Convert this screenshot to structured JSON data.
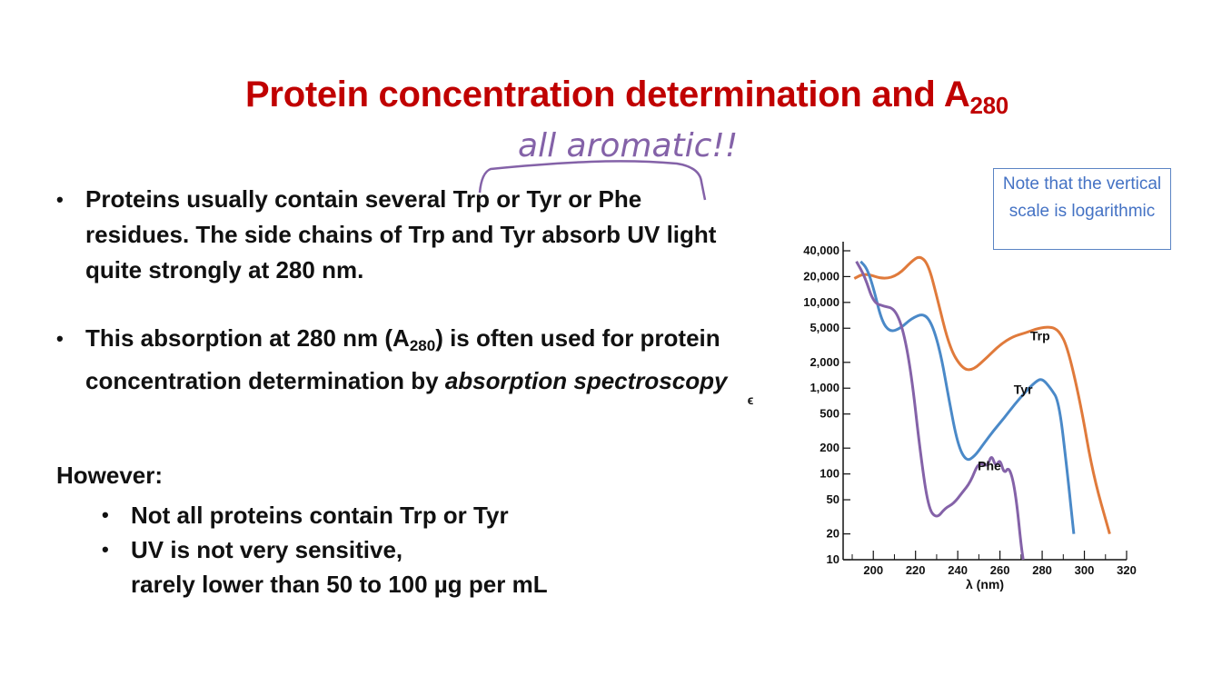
{
  "title": {
    "main": "Protein concentration determination and A",
    "sub": "280"
  },
  "annotation": {
    "handwritten": "all aromatic!!"
  },
  "bullets": [
    {
      "text": "Proteins usually contain several Trp or Tyr or Phe residues.   The side chains of Trp and Tyr absorb UV light quite strongly at 280 nm."
    },
    {
      "part1": "This absorption at 280 nm (A",
      "sub": "280",
      "part2": ") is often used for protein concentration determination by ",
      "italic": "absorption spectroscopy"
    }
  ],
  "however": {
    "label": "However:",
    "items": [
      {
        "line1": "Not all proteins contain Trp or Tyr"
      },
      {
        "line1": "UV is not very sensitive,",
        "line2": "rarely lower than 50 to 100 µg per mL"
      }
    ]
  },
  "note": {
    "text": "Note that the vertical scale is logarithmic"
  },
  "chart_data": {
    "type": "line",
    "xlabel": "λ (nm)",
    "ylabel": "ϵ",
    "xlim": [
      190,
      320
    ],
    "ylim": [
      10,
      40000
    ],
    "yscale": "log",
    "x_ticks": [
      200,
      220,
      240,
      260,
      280,
      300,
      320
    ],
    "y_ticks": [
      10,
      20,
      50,
      100,
      200,
      500,
      1000,
      2000,
      5000,
      10000,
      20000,
      40000
    ],
    "y_tick_labels": [
      "10",
      "20",
      "50",
      "100",
      "200",
      "500",
      "1,000",
      "2,000",
      "5,000",
      "10,000",
      "20,000",
      "40,000"
    ],
    "series": [
      {
        "name": "Trp",
        "color": "#e07a3b",
        "x": [
          191,
          196,
          205,
          212,
          218,
          222,
          226,
          230,
          236,
          242,
          247,
          254,
          260,
          266,
          272,
          278,
          284,
          288,
          292,
          298,
          304,
          312
        ],
        "y": [
          19000,
          22000,
          18500,
          21000,
          30000,
          35000,
          28000,
          12000,
          3000,
          1700,
          1600,
          2300,
          3200,
          4000,
          4400,
          5000,
          5200,
          4700,
          3000,
          700,
          100,
          20
        ]
      },
      {
        "name": "Tyr",
        "color": "#4a89c8",
        "x": [
          194,
          197,
          200,
          204,
          208,
          213,
          218,
          224,
          228,
          232,
          236,
          240,
          244,
          248,
          252,
          257,
          262,
          267,
          272,
          277,
          280,
          284,
          288,
          292,
          295
        ],
        "y": [
          30000,
          25000,
          15000,
          6000,
          4500,
          5000,
          6500,
          7500,
          5500,
          2500,
          700,
          220,
          140,
          160,
          220,
          320,
          450,
          650,
          900,
          1200,
          1300,
          1000,
          700,
          100,
          20
        ]
      },
      {
        "name": "Phe",
        "color": "#8462a8",
        "x": [
          192,
          196,
          200,
          205,
          210,
          214,
          218,
          222,
          226,
          230,
          234,
          238,
          242,
          246,
          250,
          254,
          256,
          258,
          260,
          262,
          264,
          266,
          268,
          270,
          271
        ],
        "y": [
          30000,
          20000,
          10000,
          9000,
          8500,
          5000,
          1500,
          200,
          40,
          30,
          40,
          45,
          60,
          80,
          140,
          120,
          170,
          120,
          150,
          100,
          120,
          90,
          45,
          15,
          10
        ]
      }
    ],
    "labels": [
      {
        "text": "Trp",
        "x": 279,
        "y": 3600
      },
      {
        "text": "Tyr",
        "x": 271,
        "y": 860
      },
      {
        "text": "Phe",
        "x": 255,
        "y": 110
      }
    ]
  }
}
